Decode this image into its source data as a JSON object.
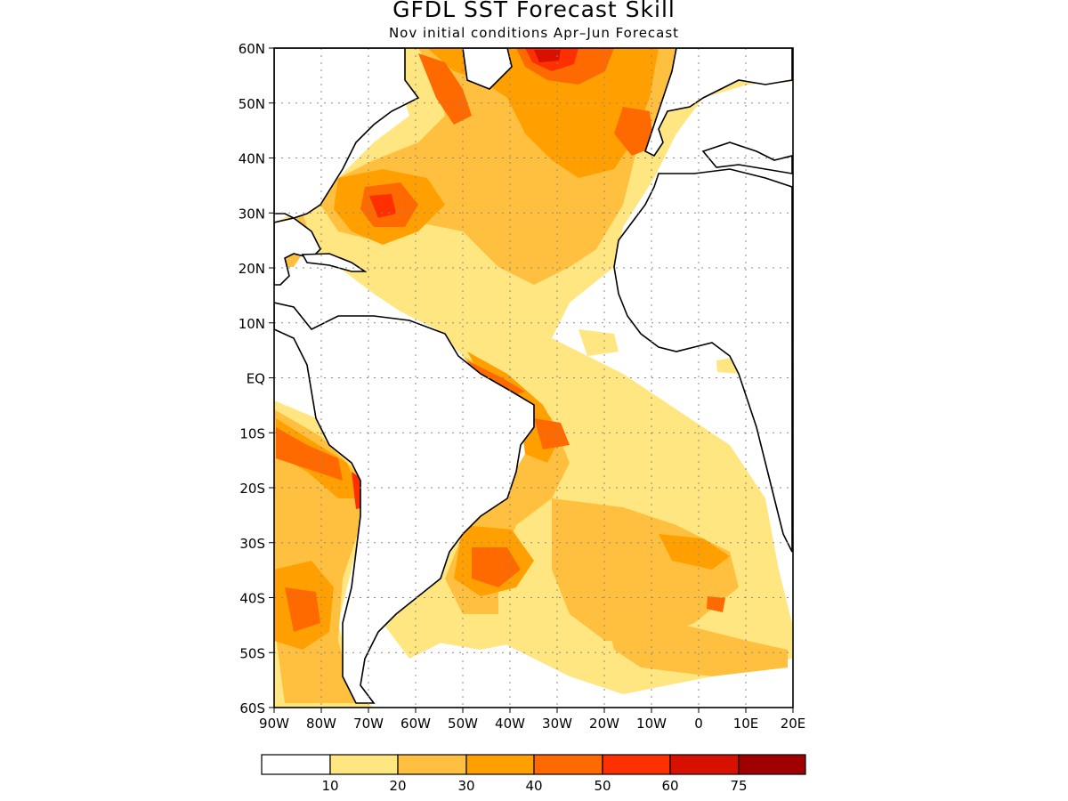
{
  "title": "GFDL SST Forecast Skill",
  "subtitle": "Nov initial conditions  Apr–Jun Forecast",
  "lat_labels": [
    "60N",
    "50N",
    "40N",
    "30N",
    "20N",
    "10N",
    "EQ",
    "10S",
    "20S",
    "30S",
    "40S",
    "50S",
    "60S"
  ],
  "lon_labels": [
    "90W",
    "80W",
    "70W",
    "60W",
    "50W",
    "40W",
    "30W",
    "20W",
    "10W",
    "0",
    "10E",
    "20E"
  ],
  "colorbar": {
    "colors": [
      "#ffffff",
      "#ffe680",
      "#ffc040",
      "#ffa000",
      "#ff6a00",
      "#ff3000",
      "#d81000",
      "#a00000"
    ],
    "labels": [
      "10",
      "20",
      "30",
      "40",
      "50",
      "60",
      "75"
    ]
  }
}
